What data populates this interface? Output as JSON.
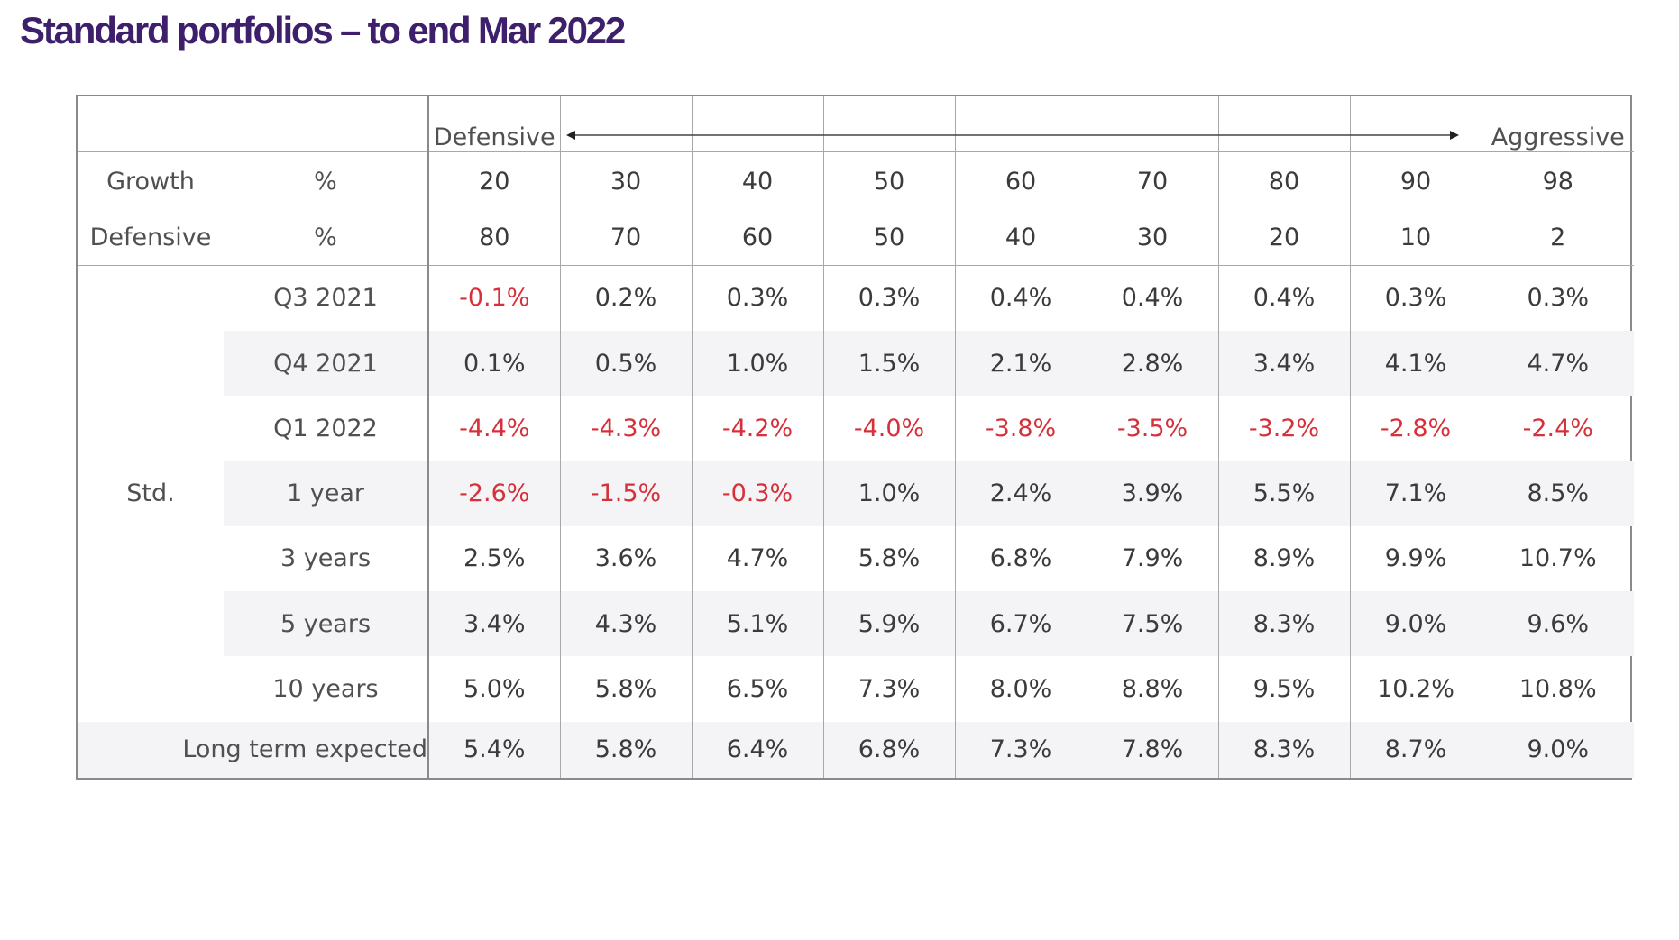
{
  "title": "Standard portfolios – to end Mar 2022",
  "header": {
    "left_label": "Defensive",
    "right_label": "Aggressive"
  },
  "allocation": {
    "growth_label": "Growth",
    "defensive_label": "Defensive",
    "unit": "%",
    "growth": [
      "20",
      "30",
      "40",
      "50",
      "60",
      "70",
      "80",
      "90",
      "98"
    ],
    "defensive": [
      "80",
      "70",
      "60",
      "50",
      "40",
      "30",
      "20",
      "10",
      "2"
    ]
  },
  "group_label": "Std.",
  "rows": [
    {
      "label": "Q3 2021",
      "values": [
        "-0.1%",
        "0.2%",
        "0.3%",
        "0.3%",
        "0.4%",
        "0.4%",
        "0.4%",
        "0.3%",
        "0.3%"
      ]
    },
    {
      "label": "Q4 2021",
      "values": [
        "0.1%",
        "0.5%",
        "1.0%",
        "1.5%",
        "2.1%",
        "2.8%",
        "3.4%",
        "4.1%",
        "4.7%"
      ]
    },
    {
      "label": "Q1 2022",
      "values": [
        "-4.4%",
        "-4.3%",
        "-4.2%",
        "-4.0%",
        "-3.8%",
        "-3.5%",
        "-3.2%",
        "-2.8%",
        "-2.4%"
      ]
    },
    {
      "label": "1 year",
      "values": [
        "-2.6%",
        "-1.5%",
        "-0.3%",
        "1.0%",
        "2.4%",
        "3.9%",
        "5.5%",
        "7.1%",
        "8.5%"
      ]
    },
    {
      "label": "3 years",
      "values": [
        "2.5%",
        "3.6%",
        "4.7%",
        "5.8%",
        "6.8%",
        "7.9%",
        "8.9%",
        "9.9%",
        "10.7%"
      ]
    },
    {
      "label": "5 years",
      "values": [
        "3.4%",
        "4.3%",
        "5.1%",
        "5.9%",
        "6.7%",
        "7.5%",
        "8.3%",
        "9.0%",
        "9.6%"
      ]
    },
    {
      "label": "10 years",
      "values": [
        "5.0%",
        "5.8%",
        "6.5%",
        "7.3%",
        "8.0%",
        "8.8%",
        "9.5%",
        "10.2%",
        "10.8%"
      ]
    }
  ],
  "long_term": {
    "label": "Long term expected",
    "values": [
      "5.4%",
      "5.8%",
      "6.4%",
      "6.8%",
      "7.3%",
      "7.8%",
      "8.3%",
      "8.7%",
      "9.0%"
    ]
  },
  "colors": {
    "title": "#3d1f6b",
    "negative": "#d6303a",
    "shade": "#f4f4f6"
  }
}
